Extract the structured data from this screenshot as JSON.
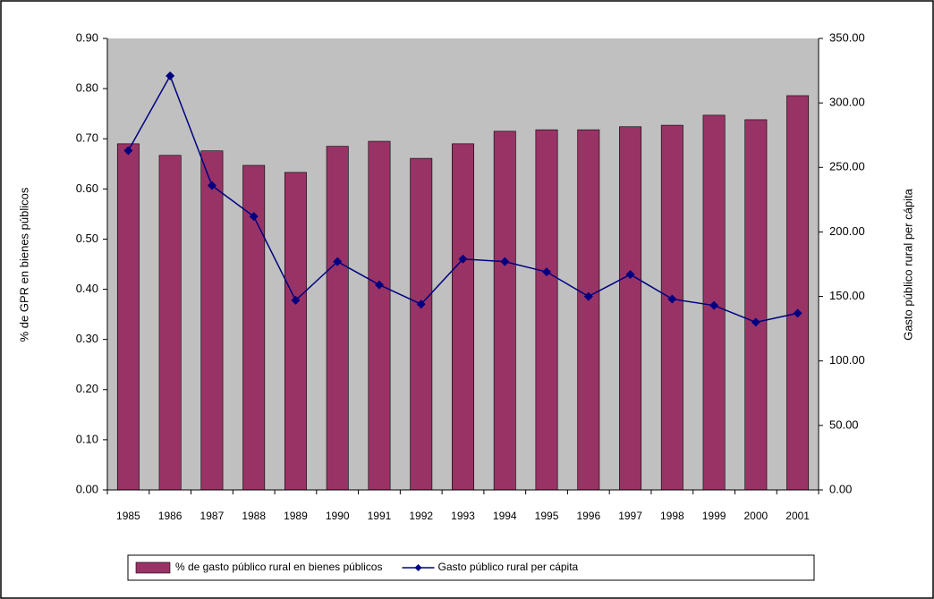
{
  "chart_data": {
    "type": "bar_line",
    "y_label": "% de GPR en bienes públicos",
    "y2_label": "Gasto público rural per cápita",
    "categories": [
      "1985",
      "1986",
      "1987",
      "1988",
      "1989",
      "1990",
      "1991",
      "1992",
      "1993",
      "1994",
      "1995",
      "1996",
      "1997",
      "1998",
      "1999",
      "2000",
      "2001"
    ],
    "series": [
      {
        "name": "% de gasto público rural en bienes públicos",
        "type": "bar",
        "color": "#993366",
        "values": [
          0.69,
          0.667,
          0.676,
          0.647,
          0.633,
          0.685,
          0.695,
          0.661,
          0.69,
          0.715,
          0.718,
          0.718,
          0.724,
          0.727,
          0.747,
          0.738,
          0.786
        ]
      },
      {
        "name": "Gasto público rural per cápita",
        "type": "line",
        "axis": "y2",
        "color": "#000080",
        "values": [
          263,
          321,
          236,
          212,
          147,
          177,
          159,
          144,
          179,
          177,
          169,
          150,
          167,
          148,
          143,
          130,
          137
        ]
      }
    ],
    "ylim": [
      0,
      0.9
    ],
    "yticks": [
      {
        "value": 0,
        "label": "0.00"
      },
      {
        "value": 0.1,
        "label": "0.10"
      },
      {
        "value": 0.2,
        "label": "0.20"
      },
      {
        "value": 0.3,
        "label": "0.30"
      },
      {
        "value": 0.4,
        "label": "0.40"
      },
      {
        "value": 0.5,
        "label": "0.50"
      },
      {
        "value": 0.6,
        "label": "0.60"
      },
      {
        "value": 0.7,
        "label": "0.70"
      },
      {
        "value": 0.8,
        "label": "0.80"
      },
      {
        "value": 0.9,
        "label": "0.90"
      }
    ],
    "y2lim": [
      0,
      350
    ],
    "y2ticks": [
      {
        "value": 0,
        "label": "0.00"
      },
      {
        "value": 50,
        "label": "50.00"
      },
      {
        "value": 100,
        "label": "100.00"
      },
      {
        "value": 150,
        "label": "150.00"
      },
      {
        "value": 200,
        "label": "200.00"
      },
      {
        "value": 250,
        "label": "250.00"
      },
      {
        "value": 300,
        "label": "300.00"
      },
      {
        "value": 350,
        "label": "350.00"
      }
    ],
    "plot_background": "#c0c0c0",
    "legend": "bottom"
  }
}
